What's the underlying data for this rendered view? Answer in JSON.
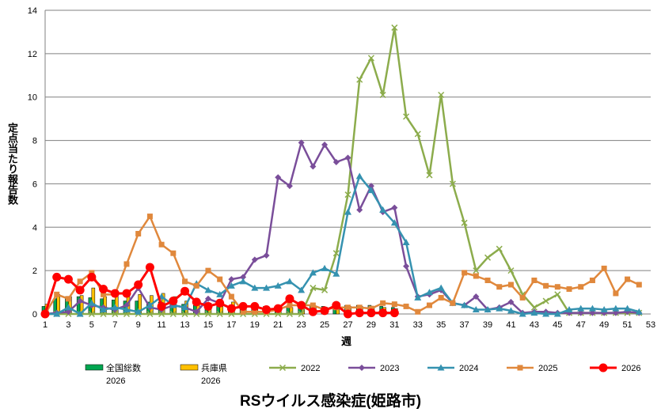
{
  "chart_data": {
    "type": "line",
    "title": "RSウイルス感染症(姫路市)",
    "xlabel": "週",
    "ylabel": "定点当たり報告数",
    "xlim": [
      1,
      53
    ],
    "ylim": [
      0,
      14
    ],
    "yticks": [
      0,
      2,
      4,
      6,
      8,
      10,
      12,
      14
    ],
    "xticks": [
      1,
      3,
      5,
      7,
      9,
      11,
      13,
      15,
      17,
      19,
      21,
      23,
      25,
      27,
      29,
      31,
      33,
      35,
      37,
      39,
      41,
      43,
      45,
      47,
      49,
      51,
      53
    ],
    "grid": "horizontal",
    "legend_position": "bottom",
    "bar_series": [
      {
        "name": "全国総数\n2026",
        "color": "#00a650",
        "values": [
          0.35,
          0.7,
          0.8,
          0.8,
          0.75,
          0.7,
          0.65,
          0.6,
          0.6,
          0.55,
          0.55,
          0.5,
          0.45,
          0.4,
          0.4,
          0.35,
          0.35,
          0.35,
          0.35,
          0.35,
          0.35,
          0.35,
          0.35,
          0.35,
          0.35,
          0.35,
          0.4,
          0.4,
          0.4,
          0.35,
          0.3
        ]
      },
      {
        "name": "兵庫県\n2026",
        "color": "#ffc000",
        "values": [
          0.45,
          0.9,
          0.8,
          0.85,
          1.2,
          0.8,
          0.9,
          0.8,
          0.9,
          0.85,
          0.95,
          0.8,
          0.6,
          0.5,
          0.5,
          0.45,
          0.55,
          0.4,
          0.35,
          0.3,
          0.3,
          0.3,
          0.35,
          0.3,
          0.3,
          0.3,
          0.35,
          0.35,
          0.35,
          0.3,
          0.25
        ]
      }
    ],
    "series": [
      {
        "name": "2022",
        "color": "#8cac4c",
        "marker": "x",
        "values": [
          0,
          0,
          0,
          0,
          0,
          0,
          0,
          0,
          0,
          0,
          0,
          0,
          0,
          0,
          0,
          0,
          0,
          0,
          0,
          0,
          0,
          0,
          0,
          1.2,
          1.1,
          2.8,
          5.5,
          10.8,
          11.8,
          10.1,
          13.2,
          9.1,
          8.3,
          6.4,
          10.1,
          6.0,
          4.2,
          2.0,
          2.6,
          3.0,
          2.0,
          0.9,
          0.3,
          0.6,
          0.9,
          0.05,
          0.05,
          0.05,
          0.05,
          0.05,
          0.05,
          0.05
        ]
      },
      {
        "name": "2023",
        "color": "#7a4e9a",
        "marker": "diamond",
        "values": [
          0,
          0.05,
          0.1,
          0.6,
          0.4,
          0.3,
          0.2,
          0.4,
          1.2,
          0.3,
          0.2,
          0.4,
          0.3,
          0.1,
          0.7,
          0.5,
          1.6,
          1.7,
          2.5,
          2.7,
          6.3,
          5.9,
          7.9,
          6.8,
          7.8,
          7.0,
          7.2,
          4.8,
          5.9,
          4.7,
          4.9,
          2.2,
          0.8,
          0.9,
          1.1,
          0.5,
          0.4,
          0.8,
          0.2,
          0.3,
          0.55,
          0.05,
          0.1,
          0.1,
          0.05,
          0.05,
          0.05,
          0.05,
          0.05,
          0.05,
          0.1,
          0.05
        ]
      },
      {
        "name": "2024",
        "color": "#3592b0",
        "marker": "triangle",
        "values": [
          0,
          0,
          0.3,
          0,
          0.5,
          0.2,
          0.3,
          0.2,
          0.1,
          0.4,
          0.8,
          0.4,
          0.3,
          1.4,
          1.1,
          0.9,
          1.3,
          1.5,
          1.2,
          1.2,
          1.3,
          1.5,
          1.1,
          1.9,
          2.1,
          1.85,
          4.7,
          6.35,
          5.7,
          4.8,
          4.2,
          3.3,
          0.75,
          1.0,
          1.2,
          0.5,
          0.4,
          0.2,
          0.2,
          0.25,
          0.15,
          0,
          0.05,
          0,
          0,
          0.2,
          0.25,
          0.25,
          0.2,
          0.25,
          0.25,
          0.1
        ]
      },
      {
        "name": "2025",
        "color": "#e0883c",
        "marker": "square",
        "values": [
          0,
          0.9,
          0.7,
          1.5,
          1.9,
          0.9,
          0.9,
          2.3,
          3.7,
          4.5,
          3.2,
          2.8,
          1.5,
          1.3,
          2.0,
          1.6,
          0.8,
          0.1,
          0.1,
          0.1,
          0.2,
          0.4,
          0.4,
          0.4,
          0.2,
          0.3,
          0.3,
          0.3,
          0.25,
          0.5,
          0.45,
          0.35,
          0.1,
          0.4,
          0.75,
          0.5,
          1.9,
          1.75,
          1.55,
          1.25,
          1.35,
          0.75,
          1.55,
          1.3,
          1.25,
          1.15,
          1.25,
          1.55,
          2.1,
          0.95,
          1.6,
          1.35
        ]
      },
      {
        "name": "2026",
        "color": "#ff0000",
        "marker": "circle",
        "values": [
          0,
          1.7,
          1.6,
          1.1,
          1.7,
          1.15,
          0.95,
          0.95,
          1.35,
          2.15,
          0.35,
          0.6,
          1.05,
          0.55,
          0.35,
          0.5,
          0.25,
          0.35,
          0.35,
          0.2,
          0.25,
          0.7,
          0.4,
          0.1,
          0.15,
          0.4,
          0,
          0.05,
          0.05,
          0.05,
          0.05
        ]
      }
    ]
  }
}
